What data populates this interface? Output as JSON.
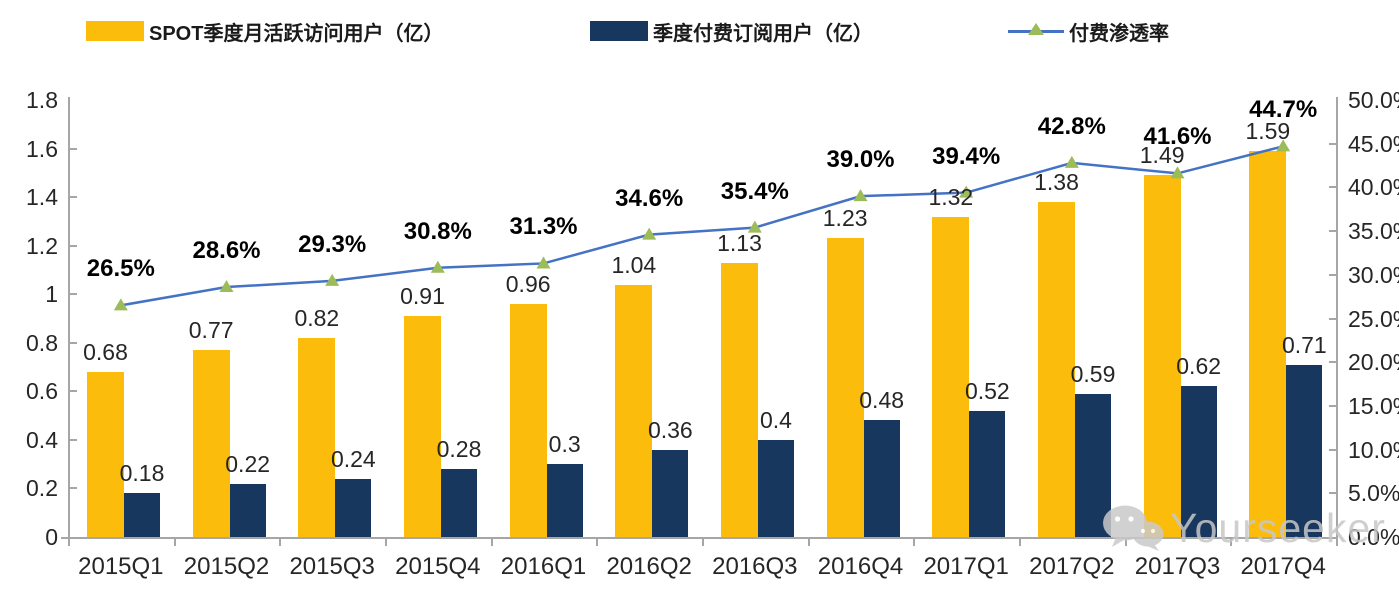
{
  "legend": {
    "items": [
      {
        "label": "SPOT季度月活跃访问用户（亿）",
        "color": "#FBBC0C"
      },
      {
        "label": "季度付费订阅用户（亿）",
        "color": "#17375E"
      },
      {
        "label": "付费渗透率",
        "line_color": "#4472C4",
        "marker_color": "#9CBB59"
      }
    ]
  },
  "watermark": {
    "text": "Yourseeker",
    "icon": "wechat-icon",
    "color": "#C7C7C7"
  },
  "chart_data": {
    "type": "bar",
    "subtype": "combo-bar-line",
    "categories": [
      "2015Q1",
      "2015Q2",
      "2015Q3",
      "2015Q4",
      "2016Q1",
      "2016Q2",
      "2016Q3",
      "2016Q4",
      "2017Q1",
      "2017Q2",
      "2017Q3",
      "2017Q4"
    ],
    "series": [
      {
        "name": "SPOT季度月活跃访问用户（亿）",
        "type": "bar",
        "axis": "left",
        "color": "#FBBC0C",
        "values": [
          0.68,
          0.77,
          0.82,
          0.91,
          0.96,
          1.04,
          1.13,
          1.23,
          1.32,
          1.38,
          1.49,
          1.59
        ],
        "labels": [
          "0.68",
          "0.77",
          "0.82",
          "0.91",
          "0.96",
          "1.04",
          "1.13",
          "1.23",
          "1.32",
          "1.38",
          "1.49",
          "1.59"
        ]
      },
      {
        "name": "季度付费订阅用户（亿）",
        "type": "bar",
        "axis": "left",
        "color": "#17375E",
        "values": [
          0.18,
          0.22,
          0.24,
          0.28,
          0.3,
          0.36,
          0.4,
          0.48,
          0.52,
          0.59,
          0.62,
          0.71
        ],
        "labels": [
          "0.18",
          "0.22",
          "0.24",
          "0.28",
          "0.3",
          "0.36",
          "0.4",
          "0.48",
          "0.52",
          "0.59",
          "0.62",
          "0.71"
        ]
      },
      {
        "name": "付费渗透率",
        "type": "line",
        "axis": "right",
        "color": "#4472C4",
        "marker": "triangle",
        "marker_color": "#9CBB59",
        "values": [
          26.5,
          28.6,
          29.3,
          30.8,
          31.3,
          34.6,
          35.4,
          39.0,
          39.4,
          42.8,
          41.6,
          44.7
        ],
        "labels": [
          "26.5%",
          "28.6%",
          "29.3%",
          "30.8%",
          "31.3%",
          "34.6%",
          "35.4%",
          "39.0%",
          "39.4%",
          "42.8%",
          "41.6%",
          "44.7%"
        ]
      }
    ],
    "left_axis": {
      "min": 0,
      "max": 1.8,
      "step": 0.2,
      "tick_labels": [
        "1.8",
        "1.6",
        "1.4",
        "1.2",
        "1",
        "0.8",
        "0.6",
        "0.4",
        "0.2",
        "0"
      ]
    },
    "right_axis": {
      "min": 0,
      "max": 50,
      "step": 5,
      "tick_labels": [
        "50.0%",
        "45.0%",
        "40.0%",
        "35.0%",
        "30.0%",
        "25.0%",
        "20.0%",
        "15.0%",
        "10.0%",
        "5.0%",
        "0.0%"
      ]
    },
    "grid": false,
    "legend_position": "top",
    "axis_color": "#A6A6A6",
    "title": "",
    "xlabel": "",
    "ylabel": ""
  }
}
